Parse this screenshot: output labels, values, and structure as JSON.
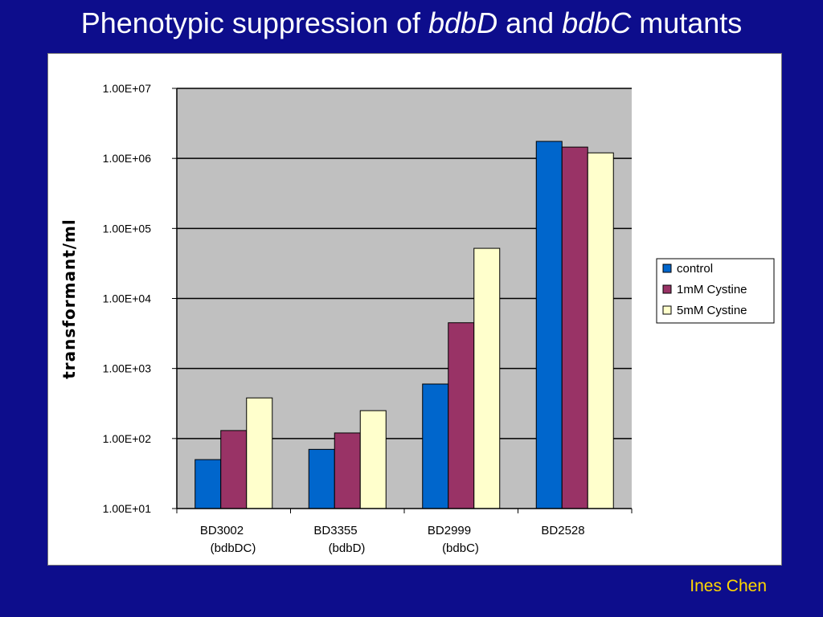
{
  "slide": {
    "title_part1": "Phenotypic suppression of ",
    "title_italic1": "bdbD",
    "title_part2": " and ",
    "title_italic2": "bdbC",
    "title_part3": " mutants",
    "credit": "Ines Chen"
  },
  "colors": {
    "background": "#0d0d8c",
    "plot_area": "#c0c0c0",
    "credit": "#ffd700"
  },
  "chart_data": {
    "type": "bar",
    "scale": "log",
    "ylabel": "transformant/ml",
    "ylim": [
      10,
      10000000
    ],
    "yticks": [
      {
        "value": 10,
        "label": "1.00E+01"
      },
      {
        "value": 100,
        "label": "1.00E+02"
      },
      {
        "value": 1000,
        "label": "1.00E+03"
      },
      {
        "value": 10000,
        "label": "1.00E+04"
      },
      {
        "value": 100000,
        "label": "1.00E+05"
      },
      {
        "value": 1000000,
        "label": "1.00E+06"
      },
      {
        "value": 10000000,
        "label": "1.00E+07"
      }
    ],
    "categories": [
      "BD3002",
      "BD3355",
      "BD2999",
      "BD2528"
    ],
    "category_sublabels": [
      "(bdbDC)",
      "(bdbD)",
      "(bdbC)",
      ""
    ],
    "series": [
      {
        "name": "control",
        "color": "#0066cc",
        "values": [
          50,
          70,
          600,
          1750000
        ]
      },
      {
        "name": "1mM Cystine",
        "color": "#993366",
        "values": [
          130,
          120,
          4500,
          1450000
        ]
      },
      {
        "name": "5mM Cystine",
        "color": "#ffffcc",
        "values": [
          380,
          250,
          52000,
          1200000
        ]
      }
    ],
    "grid": true,
    "legend_position": "right"
  }
}
